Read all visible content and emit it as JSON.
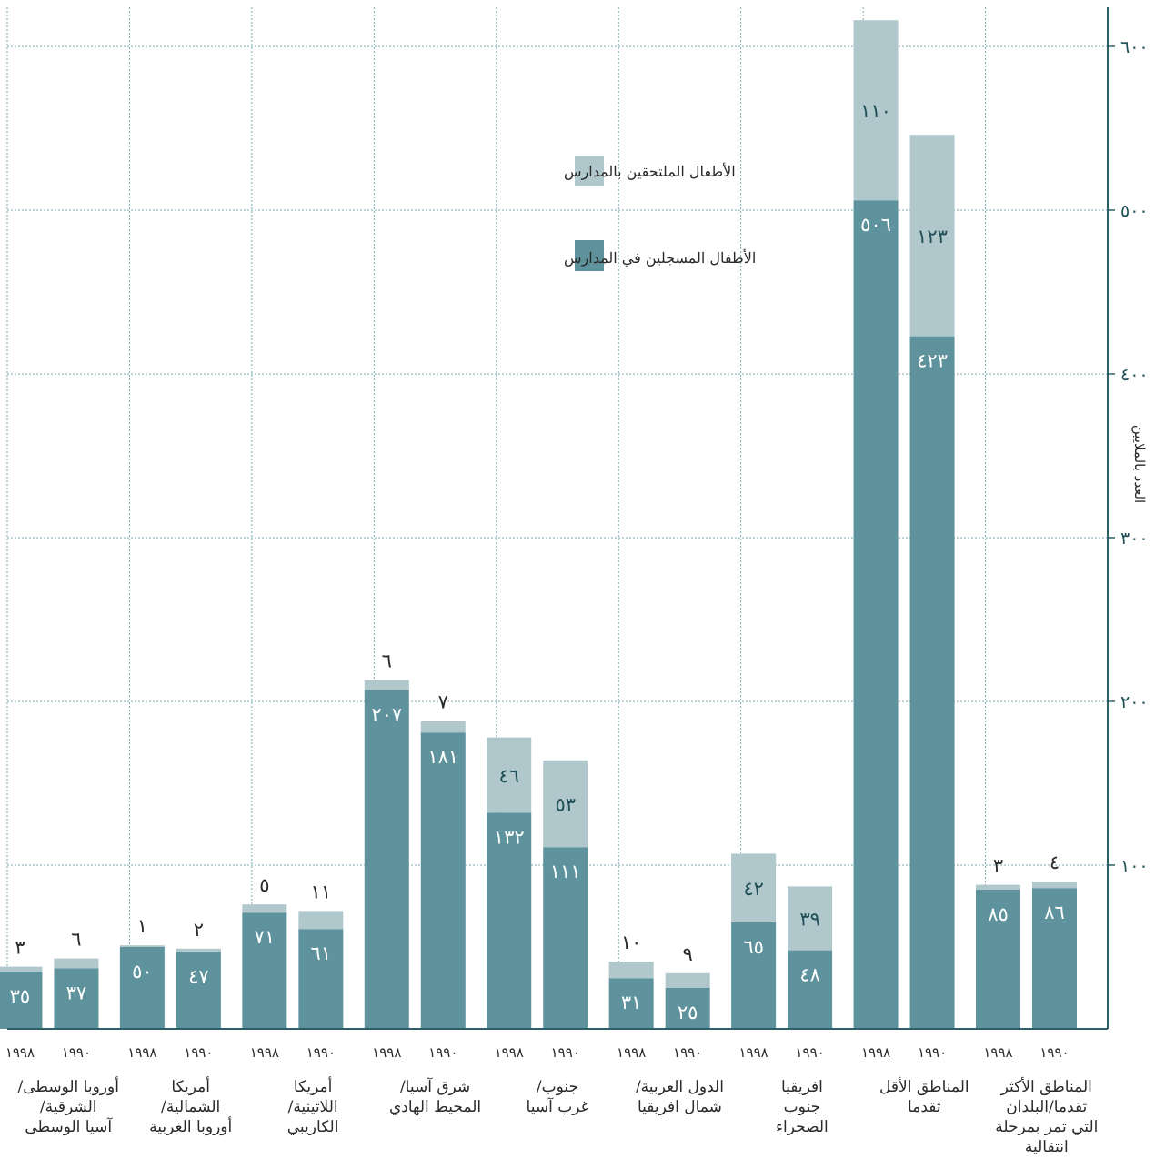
{
  "chart_data": {
    "type": "bar",
    "stacked": true,
    "ylabel": "العدد بالملايين",
    "ylim": [
      0,
      620
    ],
    "yticks": [
      100,
      200,
      300,
      400,
      500,
      600
    ],
    "ytick_labels": [
      "١٠٠",
      "٢٠٠",
      "٣٠٠",
      "٤٠٠",
      "٥٠٠",
      "٦٠٠"
    ],
    "grid": true,
    "legend_position": "top-center",
    "colors": {
      "enrolled": "#5e929d",
      "not_enrolled": "#b0c7cc",
      "grid": "#7fa8b0",
      "axis": "#2e5f69"
    },
    "series": [
      {
        "key": "enrolled",
        "name": "الأطفال المسجلين في المدارس"
      },
      {
        "key": "not_enrolled",
        "name": "الأطفال الملتحقين بالمدارس"
      }
    ],
    "groups": [
      {
        "category": "المناطق الأكثر تقدما/البلدان التي تمر بمرحلة انتقالية",
        "lines": [
          "المناطق الأكثر",
          "تقدما/البلدان",
          "التي تمر بمرحلة",
          "انتقالية"
        ],
        "bars": [
          {
            "year": "١٩٩٠",
            "enrolled": 86,
            "not_enrolled": 4,
            "enrolled_label": "٨٦",
            "not_enrolled_label": "٤"
          },
          {
            "year": "١٩٩٨",
            "enrolled": 85,
            "not_enrolled": 3,
            "enrolled_label": "٨٥",
            "not_enrolled_label": "٣"
          }
        ]
      },
      {
        "category": "المناطق الأقل تقدما",
        "lines": [
          "المناطق الأقل",
          "تقدما"
        ],
        "bars": [
          {
            "year": "١٩٩٠",
            "enrolled": 423,
            "not_enrolled": 123,
            "enrolled_label": "٤٢٣",
            "not_enrolled_label": "١٢٣"
          },
          {
            "year": "١٩٩٨",
            "enrolled": 506,
            "not_enrolled": 110,
            "enrolled_label": "٥٠٦",
            "not_enrolled_label": "١١٠"
          }
        ]
      },
      {
        "category": "افريقيا جنوب الصحراء",
        "lines": [
          "افريقيا",
          "جنوب",
          "الصحراء"
        ],
        "bars": [
          {
            "year": "١٩٩٠",
            "enrolled": 48,
            "not_enrolled": 39,
            "enrolled_label": "٤٨",
            "not_enrolled_label": "٣٩"
          },
          {
            "year": "١٩٩٨",
            "enrolled": 65,
            "not_enrolled": 42,
            "enrolled_label": "٦٥",
            "not_enrolled_label": "٤٢"
          }
        ]
      },
      {
        "category": "الدول العربية/ شمال افريقيا",
        "lines": [
          "الدول العربية/",
          "شمال افريقيا"
        ],
        "bars": [
          {
            "year": "١٩٩٠",
            "enrolled": 25,
            "not_enrolled": 9,
            "enrolled_label": "٢٥",
            "not_enrolled_label": "٩"
          },
          {
            "year": "١٩٩٨",
            "enrolled": 31,
            "not_enrolled": 10,
            "enrolled_label": "٣١",
            "not_enrolled_label": "١٠"
          }
        ]
      },
      {
        "category": "جنوب/ غرب آسيا",
        "lines": [
          "جنوب/",
          "غرب آسيا"
        ],
        "bars": [
          {
            "year": "١٩٩٠",
            "enrolled": 111,
            "not_enrolled": 53,
            "enrolled_label": "١١١",
            "not_enrolled_label": "٥٣"
          },
          {
            "year": "١٩٩٨",
            "enrolled": 132,
            "not_enrolled": 46,
            "enrolled_label": "١٣٢",
            "not_enrolled_label": "٤٦"
          }
        ]
      },
      {
        "category": "شرق آسيا/ المحيط الهادي",
        "lines": [
          "شرق آسيا/",
          "المحيط الهادي"
        ],
        "bars": [
          {
            "year": "١٩٩٠",
            "enrolled": 181,
            "not_enrolled": 7,
            "enrolled_label": "١٨١",
            "not_enrolled_label": "٧"
          },
          {
            "year": "١٩٩٨",
            "enrolled": 207,
            "not_enrolled": 6,
            "enrolled_label": "٢٠٧",
            "not_enrolled_label": "٦"
          }
        ]
      },
      {
        "category": "أمريكا اللاتينية/ الكاريبي",
        "lines": [
          "أمريكا",
          "اللاتينية/",
          "الكاريبي"
        ],
        "bars": [
          {
            "year": "١٩٩٠",
            "enrolled": 61,
            "not_enrolled": 11,
            "enrolled_label": "٦١",
            "not_enrolled_label": "١١"
          },
          {
            "year": "١٩٩٨",
            "enrolled": 71,
            "not_enrolled": 5,
            "enrolled_label": "٧١",
            "not_enrolled_label": "٥"
          }
        ]
      },
      {
        "category": "أمريكا الشمالية/ أوروبا الغربية",
        "lines": [
          "أمريكا",
          "الشمالية/",
          "أوروبا الغربية"
        ],
        "bars": [
          {
            "year": "١٩٩٠",
            "enrolled": 47,
            "not_enrolled": 2,
            "enrolled_label": "٤٧",
            "not_enrolled_label": "٢"
          },
          {
            "year": "١٩٩٨",
            "enrolled": 50,
            "not_enrolled": 1,
            "enrolled_label": "٥٠",
            "not_enrolled_label": "١"
          }
        ]
      },
      {
        "category": "أوروبا الوسطى/ الشرقية/ آسيا الوسطى",
        "lines": [
          "أوروبا الوسطى/",
          "الشرقية/",
          "آسيا الوسطى"
        ],
        "bars": [
          {
            "year": "١٩٩٠",
            "enrolled": 37,
            "not_enrolled": 6,
            "enrolled_label": "٣٧",
            "not_enrolled_label": "٦"
          },
          {
            "year": "١٩٩٨",
            "enrolled": 35,
            "not_enrolled": 3,
            "enrolled_label": "٣٥",
            "not_enrolled_label": "٣"
          }
        ]
      }
    ]
  }
}
